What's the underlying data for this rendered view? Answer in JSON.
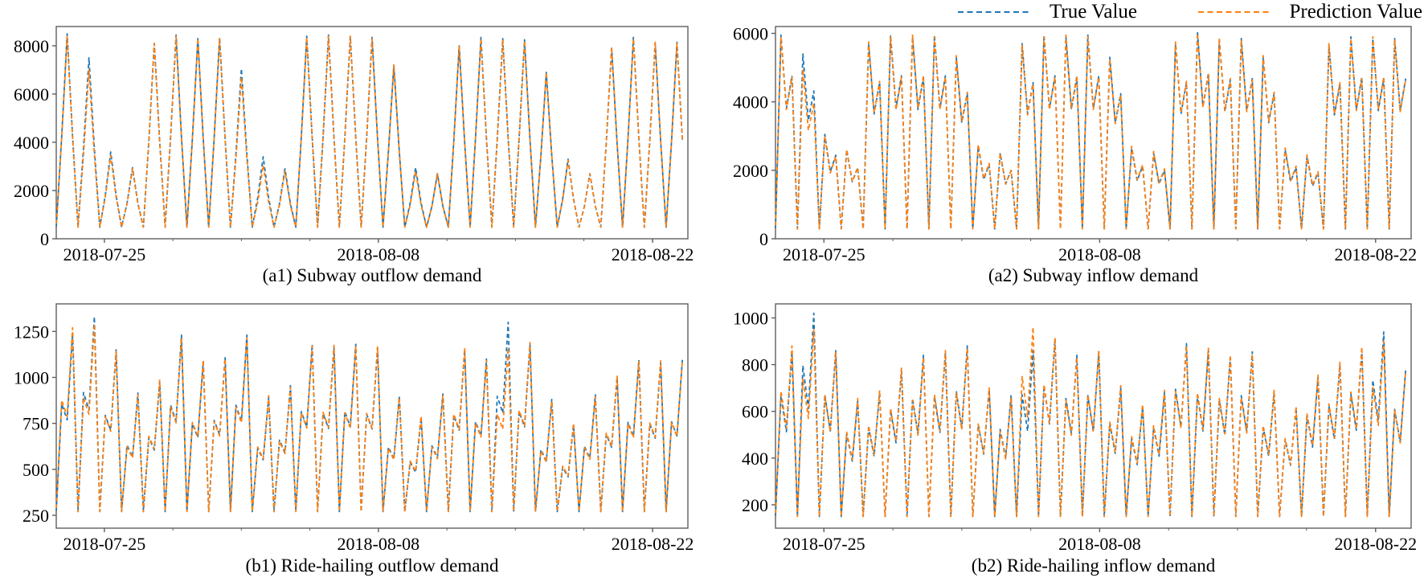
{
  "legend": {
    "items": [
      {
        "label": "True Value",
        "color": "#1f77b4"
      },
      {
        "label": "Prediction Value",
        "color": "#ff7f0e"
      }
    ]
  },
  "axis_style": {
    "spine_color": "#5f5f5f",
    "tick_color": "#5f5f5f",
    "text_color": "#000000"
  },
  "chart_data": [
    {
      "type": "line",
      "caption": "(a1) Subway outflow demand",
      "x_tick_labels": [
        "2018-07-25",
        "2018-08-08",
        "2018-08-22"
      ],
      "x_tick_pos": [
        2.21,
        14.79,
        27.38
      ],
      "y_ticks": [
        0,
        2000,
        4000,
        6000,
        8000
      ],
      "ylim": [
        0,
        8800
      ],
      "days": 29,
      "samples_per_day": 4,
      "day_template": [
        {
          "t": "abs",
          "v": 480
        },
        {
          "t": "frac",
          "v": 0.5
        },
        {
          "t": "frac",
          "v": 1
        },
        {
          "t": "frac",
          "v": 0.5
        }
      ],
      "series": [
        {
          "name": "True Value",
          "color": "#1f77b4",
          "peaks": [
            8500,
            7500,
            3600,
            2950,
            8100,
            8450,
            8300,
            8350,
            7050,
            3400,
            2900,
            8400,
            8450,
            8400,
            8350,
            7200,
            2950,
            2700,
            8000,
            8350,
            8300,
            8250,
            6900,
            3300,
            2700,
            7900,
            8350,
            8100,
            8150
          ]
        },
        {
          "name": "Prediction Value",
          "color": "#ff7f0e",
          "peaks": [
            8400,
            7000,
            3450,
            2900,
            8100,
            8400,
            8300,
            8300,
            6700,
            3050,
            2800,
            8350,
            8400,
            8400,
            8300,
            7200,
            2800,
            2700,
            8000,
            8300,
            8250,
            8200,
            6900,
            3250,
            2700,
            7950,
            8300,
            8150,
            8100
          ]
        }
      ]
    },
    {
      "type": "line",
      "caption": "(a2) Subway inflow demand",
      "x_tick_labels": [
        "2018-07-25",
        "2018-08-08",
        "2018-08-22"
      ],
      "x_tick_pos": [
        2.21,
        14.79,
        27.38
      ],
      "y_ticks": [
        0,
        2000,
        4000,
        6000
      ],
      "ylim": [
        0,
        6200
      ],
      "days": 29,
      "samples_per_day": 4,
      "day_template": [
        {
          "t": "abs",
          "v": 290
        },
        {
          "t": "frac",
          "v": 1
        },
        {
          "t": "frac",
          "v": 0.64
        },
        {
          "t": "frac",
          "v": 0.8
        }
      ],
      "series": [
        {
          "name": "True Value",
          "color": "#1f77b4",
          "peaks": [
            5950,
            5400,
            3050,
            2600,
            5700,
            5950,
            5900,
            5950,
            5300,
            2700,
            2500,
            5700,
            5950,
            5900,
            5950,
            5300,
            2650,
            2500,
            5700,
            6050,
            5800,
            5850,
            5300,
            2600,
            2400,
            5650,
            5900,
            5850,
            5850
          ]
        },
        {
          "name": "Prediction Value",
          "color": "#ff7f0e",
          "peaks": [
            5900,
            4950,
            3000,
            2600,
            5750,
            5900,
            5950,
            5900,
            5350,
            2750,
            2500,
            5650,
            5900,
            5950,
            5900,
            5250,
            2700,
            2550,
            5750,
            6000,
            5850,
            5800,
            5350,
            2650,
            2450,
            5700,
            5850,
            5900,
            5800
          ]
        }
      ]
    },
    {
      "type": "line",
      "caption": "(b1) Ride-hailing outflow demand",
      "x_tick_labels": [
        "2018-07-25",
        "2018-08-08",
        "2018-08-22"
      ],
      "x_tick_pos": [
        2.21,
        14.79,
        27.38
      ],
      "y_ticks": [
        250,
        500,
        750,
        1000,
        1250
      ],
      "ylim": [
        180,
        1400
      ],
      "days": 29,
      "samples_per_day": 4,
      "day_template": [
        {
          "t": "abs",
          "v": 270
        },
        {
          "t": "frac",
          "v": 0.69
        },
        {
          "t": "frac",
          "v": 0.62
        },
        {
          "t": "frac",
          "v": 1
        }
      ],
      "series": [
        {
          "name": "True Value",
          "color": "#1f77b4",
          "peaks": [
            1240,
            1330,
            1150,
            915,
            975,
            1230,
            1085,
            1110,
            1230,
            890,
            955,
            1180,
            1165,
            1180,
            1160,
            900,
            780,
            910,
            1150,
            1100,
            1300,
            1180,
            880,
            740,
            905,
            1000,
            1095,
            1080,
            1100
          ]
        },
        {
          "name": "Prediction Value",
          "color": "#ff7f0e",
          "peaks": [
            1270,
            1290,
            1140,
            905,
            985,
            1215,
            1095,
            1100,
            1215,
            900,
            945,
            1170,
            1175,
            1170,
            1165,
            890,
            790,
            900,
            1160,
            1090,
            1160,
            1190,
            870,
            750,
            895,
            1010,
            1085,
            1090,
            1095
          ]
        }
      ]
    },
    {
      "type": "line",
      "caption": "(b2) Ride-hailing inflow demand",
      "x_tick_labels": [
        "2018-07-25",
        "2018-08-08",
        "2018-08-22"
      ],
      "x_tick_pos": [
        2.21,
        14.79,
        27.38
      ],
      "y_ticks": [
        200,
        400,
        600,
        800,
        1000
      ],
      "ylim": [
        100,
        1060
      ],
      "days": 29,
      "samples_per_day": 4,
      "day_template": [
        {
          "t": "abs",
          "v": 150
        },
        {
          "t": "frac",
          "v": 0.78
        },
        {
          "t": "frac",
          "v": 0.6
        },
        {
          "t": "frac",
          "v": 1
        }
      ],
      "series": [
        {
          "name": "True Value",
          "color": "#1f77b4",
          "peaks": [
            855,
            1020,
            860,
            645,
            680,
            775,
            840,
            850,
            880,
            695,
            670,
            860,
            910,
            840,
            855,
            700,
            620,
            680,
            890,
            860,
            830,
            855,
            680,
            615,
            745,
            800,
            865,
            940,
            780
          ]
        },
        {
          "name": "Prediction Value",
          "color": "#ff7f0e",
          "peaks": [
            880,
            950,
            855,
            655,
            690,
            785,
            830,
            860,
            870,
            700,
            660,
            960,
            915,
            830,
            860,
            710,
            630,
            690,
            880,
            870,
            840,
            845,
            690,
            620,
            755,
            810,
            875,
            900,
            775
          ]
        }
      ]
    }
  ]
}
